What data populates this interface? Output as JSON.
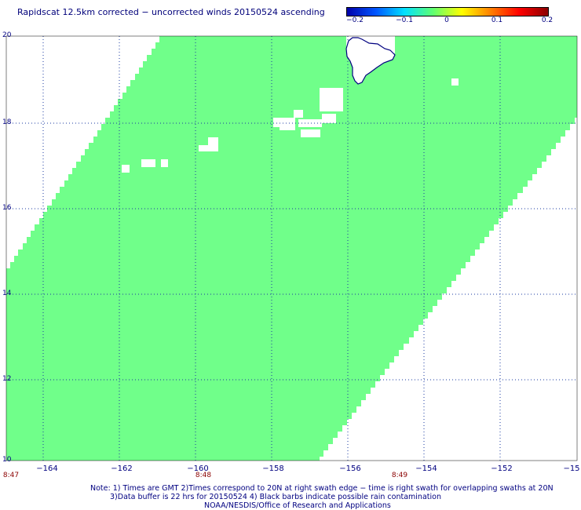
{
  "title": "Rapidscat 12.5km corrected − uncorrected winds 20150524 ascending",
  "colorbar": {
    "ticks": [
      "−0.2",
      "−0.1",
      "0",
      "0.1",
      "0.2"
    ],
    "range": [
      -0.2,
      0.2
    ],
    "colors": [
      "#0000aa",
      "#0055ff",
      "#00e0ff",
      "#60ff70",
      "#ffff00",
      "#ff8000",
      "#ff0000",
      "#8b0000"
    ]
  },
  "map": {
    "lat_labels": [
      "20",
      "18",
      "16",
      "14",
      "12",
      "10"
    ],
    "lon_labels": [
      "−164",
      "−162",
      "−160",
      "−158",
      "−156",
      "−154",
      "−152",
      "−15"
    ],
    "time_labels": [
      "8:47",
      "8:48",
      "8:49"
    ],
    "swath_color": "#70ff8a",
    "coast_color": "#000080"
  },
  "notes": {
    "line1": "Note: 1) Times are GMT 2)Times correspond to 20N at right swath edge − time is right swath for overlapping swaths at 20N",
    "line2": "3)Data buffer is 22 hrs for 20150524 4) Black barbs indicate possible rain contamination",
    "line3": "NOAA/NESDIS/Office of Research and Applications"
  }
}
